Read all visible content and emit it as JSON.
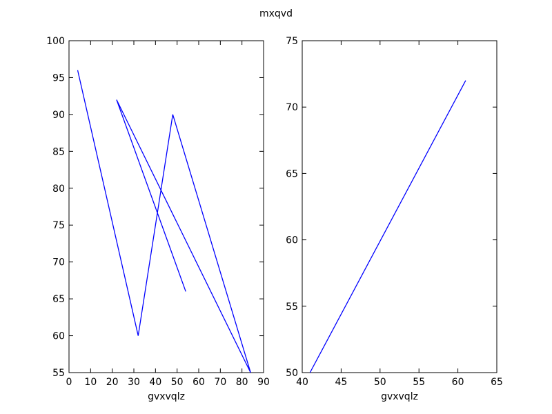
{
  "figure": {
    "title": "mxqvd"
  },
  "colors": {
    "series": "#0000ff",
    "axes": "#000000",
    "background": "#ffffff"
  },
  "chart_data": [
    {
      "type": "line",
      "title": "",
      "xlabel": "gvxvqlz",
      "ylabel": "",
      "xlim": [
        0,
        90
      ],
      "ylim": [
        55,
        100
      ],
      "xticks": [
        0,
        10,
        20,
        30,
        40,
        50,
        60,
        70,
        80,
        90
      ],
      "yticks": [
        55,
        60,
        65,
        70,
        75,
        80,
        85,
        90,
        95,
        100
      ],
      "grid": false,
      "series": [
        {
          "x": [
            4,
            32,
            48,
            84,
            22,
            54
          ],
          "y": [
            96,
            60,
            90,
            55,
            92,
            66
          ]
        }
      ]
    },
    {
      "type": "line",
      "title": "",
      "xlabel": "gvxvqlz",
      "ylabel": "",
      "xlim": [
        40,
        65
      ],
      "ylim": [
        50,
        75
      ],
      "xticks": [
        40,
        45,
        50,
        55,
        60,
        65
      ],
      "yticks": [
        50,
        55,
        60,
        65,
        70,
        75
      ],
      "grid": false,
      "series": [
        {
          "x": [
            41,
            61
          ],
          "y": [
            50,
            72
          ]
        }
      ]
    }
  ]
}
